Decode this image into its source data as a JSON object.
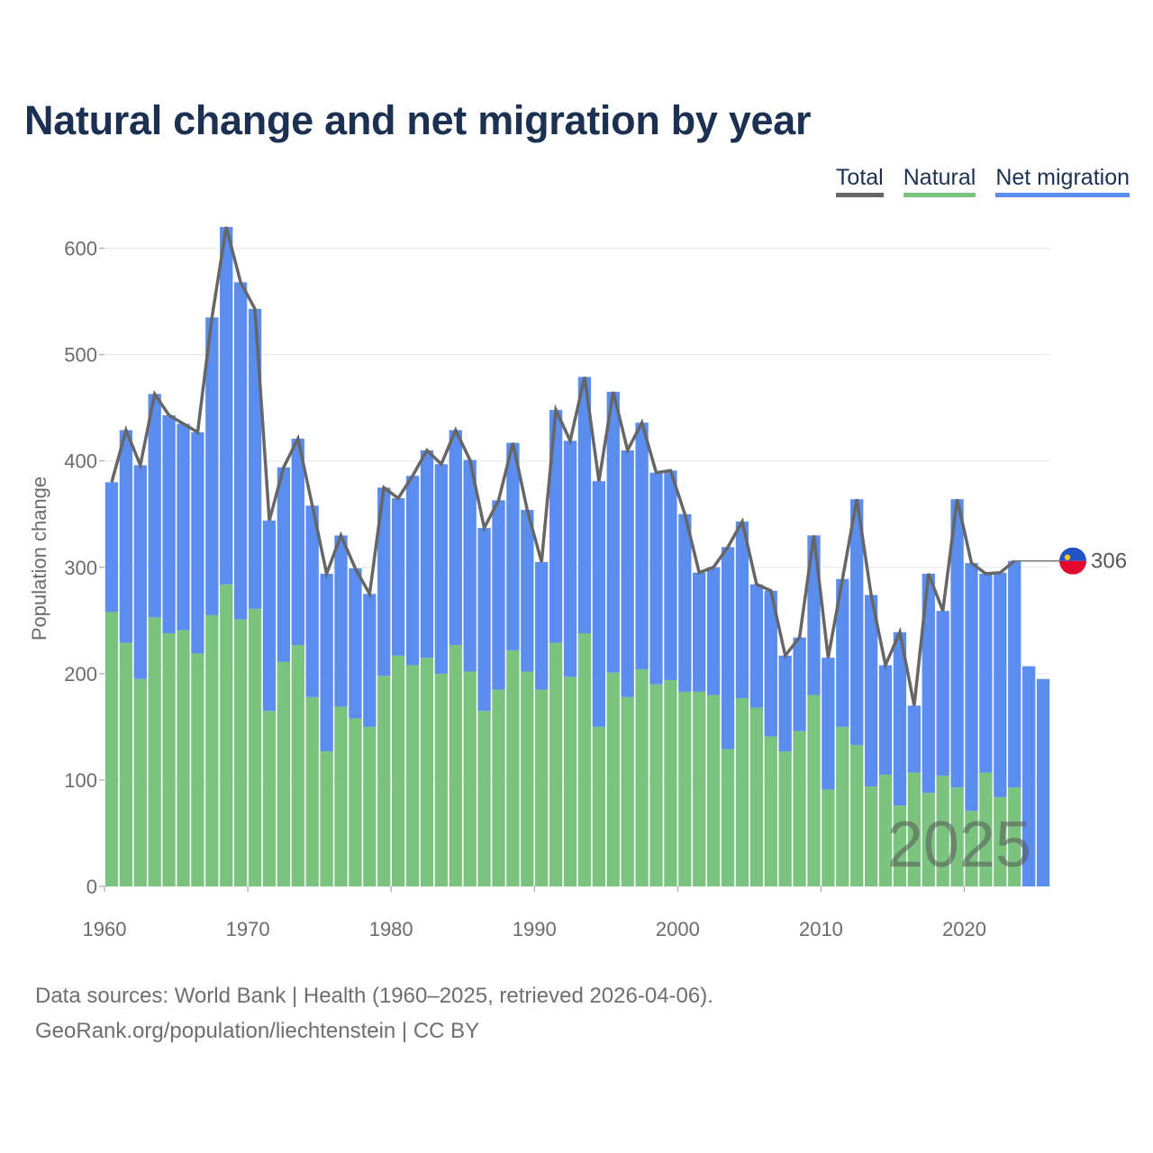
{
  "title": "Natural change and net migration by year",
  "legend": [
    {
      "label": "Total",
      "color": "#666666"
    },
    {
      "label": "Natural",
      "color": "#7bc47f"
    },
    {
      "label": "Net migration",
      "color": "#5b8def"
    }
  ],
  "footer": {
    "line1": "Data sources: World Bank | Health (1960–2025, retrieved 2026-04-06).",
    "line2": "GeoRank.org/population/liechtenstein | CC BY"
  },
  "chart_data": {
    "type": "bar",
    "stacked": true,
    "title": "Natural change and net migration by year",
    "xlabel": "",
    "ylabel": "Population change",
    "ylim": [
      0,
      620
    ],
    "yticks": [
      0,
      100,
      200,
      300,
      400,
      500,
      600
    ],
    "xticks": [
      1960,
      1970,
      1980,
      1990,
      2000,
      2010,
      2020
    ],
    "watermark": "2025",
    "end_label": "306",
    "colors": {
      "natural": "#7bc47f",
      "migration": "#5b8def",
      "total": "#666666"
    },
    "years": [
      1960,
      1961,
      1962,
      1963,
      1964,
      1965,
      1966,
      1967,
      1968,
      1969,
      1970,
      1971,
      1972,
      1973,
      1974,
      1975,
      1976,
      1977,
      1978,
      1979,
      1980,
      1981,
      1982,
      1983,
      1984,
      1985,
      1986,
      1987,
      1988,
      1989,
      1990,
      1991,
      1992,
      1993,
      1994,
      1995,
      1996,
      1997,
      1998,
      1999,
      2000,
      2001,
      2002,
      2003,
      2004,
      2005,
      2006,
      2007,
      2008,
      2009,
      2010,
      2011,
      2012,
      2013,
      2014,
      2015,
      2016,
      2017,
      2018,
      2019,
      2020,
      2021,
      2022,
      2023,
      2024,
      2025
    ],
    "series": [
      {
        "name": "Natural",
        "values": [
          258,
          229,
          195,
          253,
          238,
          241,
          219,
          255,
          284,
          251,
          261,
          165,
          211,
          227,
          178,
          127,
          169,
          158,
          150,
          198,
          217,
          208,
          215,
          200,
          227,
          202,
          165,
          185,
          222,
          202,
          185,
          229,
          197,
          238,
          150,
          201,
          178,
          204,
          190,
          194,
          183,
          183,
          180,
          129,
          177,
          168,
          141,
          127,
          146,
          180,
          91,
          150,
          133,
          94,
          105,
          76,
          107,
          88,
          104,
          93,
          71,
          107,
          84,
          93,
          0,
          0
        ]
      },
      {
        "name": "Net migration",
        "values": [
          122,
          200,
          201,
          210,
          205,
          194,
          208,
          280,
          336,
          317,
          282,
          179,
          183,
          194,
          180,
          167,
          161,
          141,
          125,
          177,
          148,
          178,
          195,
          197,
          202,
          199,
          172,
          178,
          195,
          152,
          120,
          219,
          222,
          241,
          231,
          264,
          232,
          232,
          199,
          197,
          167,
          112,
          120,
          190,
          166,
          116,
          137,
          90,
          88,
          150,
          124,
          139,
          231,
          180,
          103,
          163,
          63,
          206,
          155,
          271,
          233,
          187,
          211,
          213,
          207,
          195
        ]
      },
      {
        "name": "Total",
        "values": [
          380,
          429,
          396,
          463,
          443,
          435,
          427,
          535,
          620,
          568,
          543,
          344,
          394,
          421,
          358,
          294,
          330,
          299,
          275,
          375,
          365,
          386,
          410,
          397,
          429,
          401,
          337,
          363,
          417,
          354,
          305,
          448,
          419,
          479,
          381,
          465,
          410,
          436,
          389,
          391,
          350,
          295,
          300,
          319,
          343,
          284,
          278,
          217,
          234,
          330,
          215,
          289,
          364,
          274,
          208,
          239,
          170,
          294,
          259,
          364,
          304,
          294,
          295,
          306,
          null,
          null
        ]
      }
    ]
  }
}
